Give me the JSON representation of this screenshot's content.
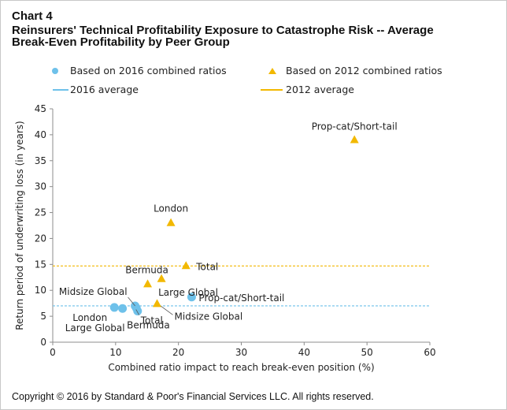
{
  "header": {
    "chart_label": "Chart 4",
    "title_line1": "Reinsurers' Technical Profitability Exposure to Catastrophe Risk -- Average",
    "title_line2": "Break-Even Profitability by Peer Group"
  },
  "footer": {
    "copyright": "Copyright © 2016 by Standard & Poor's Financial Services LLC. All rights reserved."
  },
  "colors": {
    "series_2016": "#6ec1ea",
    "series_2012": "#f2b800",
    "axis": "#8c8c8c",
    "text": "#222222"
  },
  "chart_data": {
    "type": "scatter",
    "xlabel": "Combined ratio impact to reach break-even position (%)",
    "ylabel": "Return period of underwriting loss (in years)",
    "xlim": [
      0,
      60
    ],
    "ylim": [
      0,
      45
    ],
    "xticks": [
      0,
      10,
      20,
      30,
      40,
      50,
      60
    ],
    "yticks": [
      0,
      5,
      10,
      15,
      20,
      25,
      30,
      35,
      40,
      45
    ],
    "grid": false,
    "legend_position": "top",
    "legend": {
      "s2016": "Based on 2016 combined ratios",
      "s2012": "Based on 2012 combined ratios",
      "avg2016": "2016 average",
      "avg2012": "2012 average"
    },
    "series": [
      {
        "id": "s2016",
        "name": "Based on 2016 combined ratios",
        "marker": "circle",
        "points": [
          {
            "label": "London",
            "x": 9.8,
            "y": 6.7
          },
          {
            "label": "Large Global",
            "x": 11.1,
            "y": 6.5
          },
          {
            "label": "Midsize Global",
            "x": 13.1,
            "y": 7.0
          },
          {
            "label": "Bermuda",
            "x": 13.3,
            "y": 6.6
          },
          {
            "label": "Total",
            "x": 13.5,
            "y": 6.0
          },
          {
            "label": "Prop-cat/Short-tail",
            "x": 22.1,
            "y": 8.7
          }
        ]
      },
      {
        "id": "s2012",
        "name": "Based on 2012 combined ratios",
        "marker": "triangle",
        "points": [
          {
            "label": "Prop-cat/Short-tail",
            "x": 48.0,
            "y": 39.0
          },
          {
            "label": "London",
            "x": 18.8,
            "y": 23.0
          },
          {
            "label": "Total",
            "x": 21.2,
            "y": 14.7
          },
          {
            "label": "Large Global",
            "x": 17.3,
            "y": 12.2
          },
          {
            "label": "Bermuda",
            "x": 15.1,
            "y": 11.2
          },
          {
            "label": "Midsize Global",
            "x": 16.6,
            "y": 7.4
          }
        ]
      }
    ],
    "averages": [
      {
        "id": "avg2016",
        "name": "2016 average",
        "y": 7.0
      },
      {
        "id": "avg2012",
        "name": "2012 average",
        "y": 14.7
      }
    ]
  }
}
